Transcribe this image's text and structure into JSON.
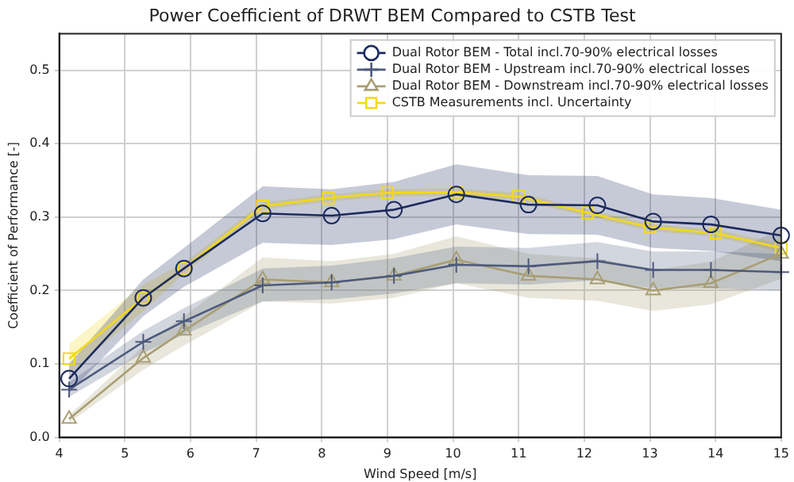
{
  "chart_data": {
    "type": "line",
    "title": "Power Coefficient of DRWT BEM Compared to CSTB Test",
    "xlabel": "Wind Speed [m/s]",
    "ylabel": "Coefficient of Performance [-]",
    "x": [
      4.15,
      5.28,
      5.9,
      7.1,
      8.15,
      9.1,
      10.05,
      11.15,
      12.2,
      13.05,
      13.93,
      15
    ],
    "xlim": [
      4,
      15
    ],
    "xticks": [
      4,
      5,
      6,
      7,
      8,
      9,
      10,
      11,
      12,
      13,
      14,
      15
    ],
    "ylim": [
      0,
      0.55
    ],
    "yticks": [
      {
        "value": 0,
        "label": "0.0"
      },
      {
        "value": 0.1,
        "label": "0.1"
      },
      {
        "value": 0.2,
        "label": "0.2"
      },
      {
        "value": 0.3,
        "label": "0.3"
      },
      {
        "value": 0.4,
        "label": "0.4"
      },
      {
        "value": 0.5,
        "label": "0.5"
      }
    ],
    "grid": true,
    "legend": "top right",
    "series": [
      {
        "name": "Dual Rotor BEM - Total incl.70-90% electrical losses",
        "color": "#1c2b5e",
        "marker": "circle",
        "values": [
          0.08,
          0.19,
          0.23,
          0.305,
          0.302,
          0.31,
          0.331,
          0.317,
          0.316,
          0.294,
          0.29,
          0.275
        ],
        "lower": [
          0.06,
          0.165,
          0.205,
          0.265,
          0.262,
          0.27,
          0.29,
          0.277,
          0.276,
          0.258,
          0.254,
          0.24
        ],
        "upper": [
          0.1,
          0.215,
          0.258,
          0.342,
          0.338,
          0.348,
          0.372,
          0.357,
          0.356,
          0.331,
          0.326,
          0.31
        ]
      },
      {
        "name": "Dual Rotor BEM - Upstream incl.70-90% electrical losses",
        "color": "#4d5a7c",
        "marker": "cross",
        "values": [
          0.065,
          0.13,
          0.158,
          0.207,
          0.211,
          0.22,
          0.235,
          0.233,
          0.24,
          0.228,
          0.228,
          0.225
        ],
        "lower": [
          0.055,
          0.115,
          0.14,
          0.185,
          0.188,
          0.196,
          0.21,
          0.208,
          0.214,
          0.203,
          0.203,
          0.2
        ],
        "upper": [
          0.075,
          0.145,
          0.176,
          0.23,
          0.234,
          0.244,
          0.26,
          0.258,
          0.266,
          0.253,
          0.253,
          0.25
        ]
      },
      {
        "name": "Dual Rotor BEM - Downstream incl.70-90% electrical losses",
        "color": "#a89e74",
        "marker": "triangle",
        "values": [
          0.025,
          0.108,
          0.145,
          0.215,
          0.211,
          0.22,
          0.242,
          0.22,
          0.215,
          0.2,
          0.21,
          0.25
        ],
        "lower": [
          0.02,
          0.092,
          0.125,
          0.185,
          0.182,
          0.19,
          0.21,
          0.19,
          0.186,
          0.172,
          0.181,
          0.216
        ],
        "upper": [
          0.03,
          0.124,
          0.165,
          0.245,
          0.24,
          0.25,
          0.274,
          0.25,
          0.244,
          0.228,
          0.239,
          0.284
        ]
      },
      {
        "name": "CSTB Measurements incl. Uncertainty",
        "color": "#f2d91a",
        "marker": "square",
        "x": [
          4.15,
          5.28,
          5.9,
          7.1,
          8.1,
          9.0,
          10.05,
          11.0,
          12.05,
          13.0,
          14.0,
          15
        ],
        "values": [
          0.107,
          0.19,
          0.23,
          0.315,
          0.326,
          0.333,
          0.334,
          0.328,
          0.306,
          0.286,
          0.278,
          0.258
        ],
        "lower": [
          0.087,
          0.172,
          0.222,
          0.31,
          0.321,
          0.328,
          0.329,
          0.323,
          0.301,
          0.281,
          0.273,
          0.252
        ],
        "upper": [
          0.127,
          0.208,
          0.238,
          0.32,
          0.331,
          0.338,
          0.339,
          0.333,
          0.311,
          0.291,
          0.283,
          0.264
        ]
      }
    ]
  }
}
